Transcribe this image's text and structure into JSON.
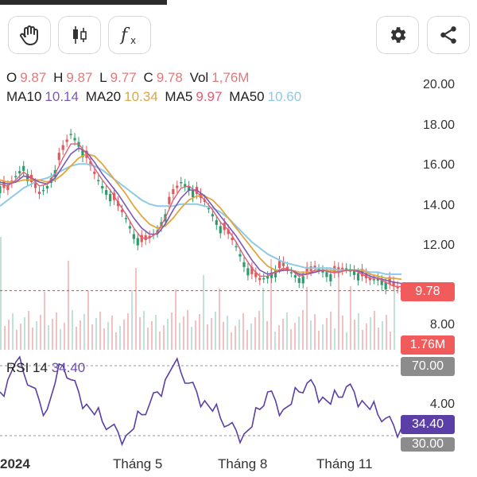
{
  "toolbar": {
    "buttons": [
      {
        "name": "hand-tool-icon"
      },
      {
        "name": "candlestick-icon"
      },
      {
        "name": "function-icon"
      },
      {
        "name": "settings-gear-icon"
      },
      {
        "name": "share-icon"
      }
    ]
  },
  "ohlc": {
    "o_label": "O",
    "o_value": "9.87",
    "h_label": "H",
    "h_value": "9.87",
    "l_label": "L",
    "l_value": "9.77",
    "c_label": "C",
    "c_value": "9.78",
    "vol_label": "Vol",
    "vol_value": "1,76M"
  },
  "ma": {
    "ma10_label": "MA10",
    "ma10_value": "10.14",
    "ma20_label": "MA20",
    "ma20_value": "10.34",
    "ma5_label": "MA5",
    "ma5_value": "9.97",
    "ma50_label": "MA50",
    "ma50_value": "10.60"
  },
  "price_axis": [
    "20.00",
    "18.00",
    "16.00",
    "14.00",
    "12.00",
    "8.00"
  ],
  "price_tag": "9.78",
  "volume_tag": "1.76M",
  "rsi": {
    "title": "RSI 14",
    "value": "34.40",
    "level_70": "70.00",
    "level_30": "30.00",
    "mid_label": "4.00"
  },
  "x_axis": [
    "2024",
    "Tháng 5",
    "Tháng 8",
    "Tháng 11"
  ],
  "colors": {
    "down": "#e05a5a",
    "up": "#2e9b6d",
    "ma5": "#e35d75",
    "ma10": "#7b58b8",
    "ma20": "#e0a63f",
    "ma50": "#8ecae6",
    "rsi": "#5b3fa6"
  },
  "chart_data": [
    {
      "type": "candlestick",
      "title": "",
      "y_axis_ticks": [
        20,
        18,
        16,
        14,
        12,
        8
      ],
      "x_labels": [
        "2024",
        "Tháng 5",
        "Tháng 8",
        "Tháng 11"
      ],
      "last_close": 9.78,
      "close_path": [
        15.0,
        14.8,
        15.5,
        16.0,
        15.2,
        14.6,
        15.0,
        15.8,
        16.8,
        17.6,
        17.2,
        16.4,
        15.6,
        15.0,
        14.6,
        14.0,
        13.4,
        12.6,
        12.2,
        12.4,
        12.8,
        13.6,
        14.6,
        15.2,
        15.0,
        14.6,
        14.2,
        13.6,
        13.0,
        12.6,
        12.0,
        11.2,
        10.6,
        10.3,
        10.5,
        10.8,
        11.0,
        10.7,
        10.4,
        10.6,
        10.9,
        10.8,
        10.6,
        10.7,
        10.9,
        10.8,
        10.5,
        10.3,
        10.4,
        10.2,
        10.0,
        9.78
      ],
      "ma5_path": [
        15.1,
        15.0,
        15.3,
        15.7,
        15.4,
        15.0,
        15.1,
        15.6,
        16.4,
        17.1,
        17.1,
        16.6,
        15.9,
        15.3,
        14.8,
        14.2,
        13.6,
        12.9,
        12.4,
        12.4,
        12.7,
        13.4,
        14.3,
        14.9,
        15.0,
        14.7,
        14.3,
        13.8,
        13.2,
        12.8,
        12.2,
        11.5,
        10.9,
        10.5,
        10.5,
        10.7,
        10.9,
        10.8,
        10.5,
        10.6,
        10.8,
        10.8,
        10.7,
        10.7,
        10.8,
        10.8,
        10.6,
        10.4,
        10.4,
        10.2,
        10.0,
        9.97
      ],
      "ma10_path": [
        15.2,
        15.1,
        15.2,
        15.5,
        15.4,
        15.2,
        15.1,
        15.4,
        16.0,
        16.6,
        16.9,
        16.7,
        16.2,
        15.6,
        15.1,
        14.6,
        14.0,
        13.4,
        12.9,
        12.6,
        12.6,
        13.1,
        13.8,
        14.4,
        14.8,
        14.8,
        14.5,
        14.0,
        13.5,
        13.0,
        12.5,
        11.9,
        11.3,
        10.8,
        10.6,
        10.7,
        10.8,
        10.8,
        10.6,
        10.6,
        10.7,
        10.8,
        10.7,
        10.7,
        10.8,
        10.8,
        10.7,
        10.5,
        10.4,
        10.3,
        10.2,
        10.14
      ],
      "ma20_path": [
        15.3,
        15.2,
        15.2,
        15.3,
        15.3,
        15.3,
        15.2,
        15.3,
        15.6,
        16.0,
        16.4,
        16.6,
        16.5,
        16.1,
        15.6,
        15.1,
        14.6,
        14.0,
        13.5,
        13.1,
        12.9,
        13.0,
        13.4,
        13.9,
        14.3,
        14.5,
        14.5,
        14.3,
        13.9,
        13.4,
        12.9,
        12.4,
        11.9,
        11.4,
        11.0,
        10.8,
        10.8,
        10.8,
        10.7,
        10.7,
        10.7,
        10.8,
        10.8,
        10.7,
        10.8,
        10.8,
        10.8,
        10.6,
        10.5,
        10.4,
        10.4,
        10.34
      ],
      "ma50_path": [
        14.0,
        14.3,
        14.6,
        14.9,
        15.1,
        15.3,
        15.4,
        15.6,
        15.8,
        16.0,
        16.1,
        16.1,
        16.0,
        15.8,
        15.5,
        15.2,
        14.9,
        14.6,
        14.3,
        14.1,
        14.0,
        14.0,
        14.0,
        14.1,
        14.1,
        14.1,
        14.0,
        13.9,
        13.7,
        13.4,
        13.0,
        12.6,
        12.2,
        11.9,
        11.6,
        11.4,
        11.2,
        11.1,
        11.0,
        10.9,
        10.9,
        10.9,
        10.9,
        10.8,
        10.8,
        10.8,
        10.8,
        10.7,
        10.7,
        10.6,
        10.6,
        10.6
      ]
    },
    {
      "type": "line",
      "title": "RSI 14",
      "levels": [
        70,
        30
      ],
      "last_value": 34.4,
      "values": [
        55,
        62,
        72,
        66,
        58,
        50,
        45,
        60,
        70,
        62,
        55,
        48,
        42,
        38,
        35,
        32,
        30,
        34,
        42,
        48,
        55,
        62,
        70,
        66,
        60,
        55,
        50,
        44,
        40,
        36,
        33,
        31,
        35,
        45,
        55,
        50,
        45,
        48,
        55,
        60,
        58,
        52,
        48,
        52,
        58,
        55,
        50,
        45,
        42,
        40,
        36,
        34.4
      ]
    }
  ]
}
